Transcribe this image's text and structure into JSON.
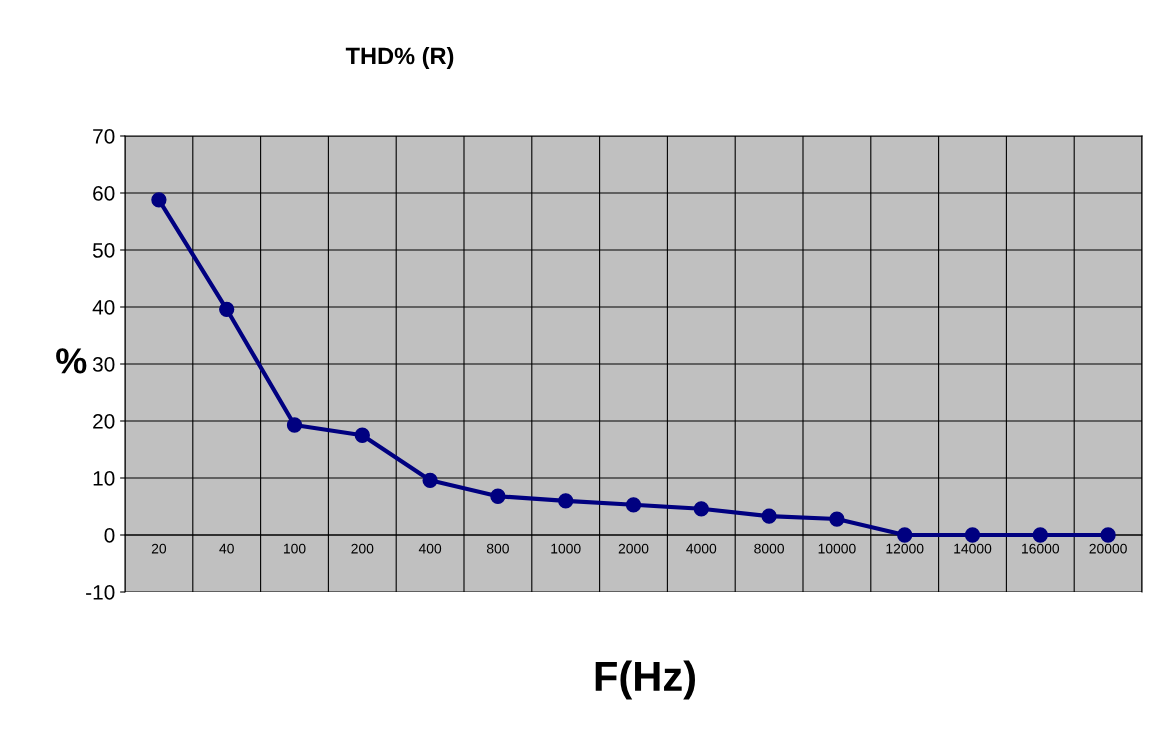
{
  "chart_data": {
    "type": "line",
    "title": "THD% (R)",
    "xlabel": "F(Hz)",
    "ylabel": "%",
    "categories": [
      "20",
      "40",
      "100",
      "200",
      "400",
      "800",
      "1000",
      "2000",
      "4000",
      "8000",
      "10000",
      "12000",
      "14000",
      "16000",
      "20000"
    ],
    "series": [
      {
        "color": "#000080",
        "values": [
          58.8,
          39.6,
          19.3,
          17.5,
          9.6,
          6.8,
          6.0,
          5.3,
          4.6,
          3.3,
          2.8,
          0,
          0,
          0,
          0
        ]
      }
    ],
    "ylim": [
      -10,
      70
    ],
    "yticks": [
      -10,
      0,
      10,
      20,
      30,
      40,
      50,
      60,
      70
    ],
    "grid": true,
    "marker": "circle",
    "line_style": "solid",
    "legend": false
  }
}
